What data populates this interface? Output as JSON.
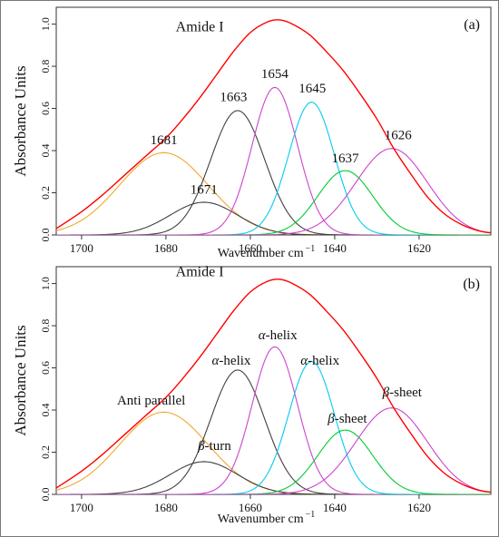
{
  "chart_data": [
    {
      "type": "line",
      "panel_label": "(a)",
      "xlabel": "Wavenumber cm",
      "xlabel_sup": "−1",
      "ylabel": "Absorbance Units",
      "xlim": [
        1706,
        1603
      ],
      "ylim": [
        0,
        1.08
      ],
      "x_ticks": [
        1700,
        1680,
        1660,
        1640,
        1620
      ],
      "y_ticks": [
        0.0,
        0.2,
        0.4,
        0.6,
        0.8,
        1.0
      ],
      "envelope": {
        "name": "Amide I",
        "label": "Amide I",
        "label_x": 1672,
        "label_y": 0.965,
        "color": "#ff0000",
        "x": [
          1706,
          1700,
          1695,
          1690,
          1685,
          1680,
          1676,
          1672,
          1668,
          1664,
          1660,
          1656,
          1653,
          1650,
          1646,
          1642,
          1638,
          1634,
          1630,
          1626,
          1622,
          1618,
          1614,
          1610,
          1606,
          1603
        ],
        "y": [
          0.03,
          0.11,
          0.19,
          0.28,
          0.37,
          0.46,
          0.55,
          0.65,
          0.76,
          0.87,
          0.96,
          1.01,
          1.02,
          1.0,
          0.95,
          0.87,
          0.78,
          0.67,
          0.55,
          0.41,
          0.29,
          0.18,
          0.1,
          0.05,
          0.02,
          0.01
        ]
      },
      "components": [
        {
          "label": "1681",
          "center": 1680.5,
          "amplitude": 0.39,
          "sigma": 10.5,
          "color": "#f0a830",
          "label_x": 1680.5,
          "label_y": 0.43
        },
        {
          "label": "1671",
          "center": 1671,
          "amplitude": 0.155,
          "sigma": 8,
          "color": "#404040",
          "label_x": 1671,
          "label_y": 0.195
        },
        {
          "label": "1663",
          "center": 1663,
          "amplitude": 0.59,
          "sigma": 6.4,
          "color": "#404040",
          "label_x": 1664,
          "label_y": 0.635
        },
        {
          "label": "1654",
          "center": 1654.2,
          "amplitude": 0.7,
          "sigma": 5.4,
          "color": "#cc44cc",
          "label_x": 1654.2,
          "label_y": 0.745
        },
        {
          "label": "1645",
          "center": 1645.5,
          "amplitude": 0.63,
          "sigma": 5.4,
          "color": "#00ccee",
          "label_x": 1645.3,
          "label_y": 0.675
        },
        {
          "label": "1637",
          "center": 1637.5,
          "amplitude": 0.305,
          "sigma": 6.5,
          "color": "#00cc33",
          "label_x": 1637.5,
          "label_y": 0.345
        },
        {
          "label": "1626",
          "center": 1626.5,
          "amplitude": 0.41,
          "sigma": 8.5,
          "color": "#cc44cc",
          "label_x": 1625,
          "label_y": 0.455
        }
      ]
    },
    {
      "type": "line",
      "panel_label": "(b)",
      "xlabel": "Wavenumber cm",
      "xlabel_sup": "−1",
      "ylabel": "Absorbance Units",
      "xlim": [
        1706,
        1603
      ],
      "ylim": [
        0,
        1.08
      ],
      "x_ticks": [
        1700,
        1680,
        1660,
        1640,
        1620
      ],
      "y_ticks": [
        0.0,
        0.2,
        0.4,
        0.6,
        0.8,
        1.0
      ],
      "envelope": {
        "name": "Amide I",
        "label": "Amide I",
        "label_x": 1672,
        "label_y": 1.035,
        "color": "#ff0000",
        "x": [
          1706,
          1700,
          1695,
          1690,
          1685,
          1680,
          1676,
          1672,
          1668,
          1664,
          1660,
          1656,
          1653,
          1650,
          1646,
          1642,
          1638,
          1634,
          1630,
          1626,
          1622,
          1618,
          1614,
          1610,
          1606,
          1603
        ],
        "y": [
          0.03,
          0.11,
          0.19,
          0.28,
          0.37,
          0.46,
          0.55,
          0.65,
          0.76,
          0.87,
          0.96,
          1.01,
          1.02,
          1.0,
          0.95,
          0.87,
          0.78,
          0.67,
          0.55,
          0.41,
          0.29,
          0.18,
          0.1,
          0.05,
          0.02,
          0.01
        ]
      },
      "components": [
        {
          "label": "Anti parallel",
          "center": 1680.5,
          "amplitude": 0.39,
          "sigma": 10.5,
          "color": "#f0a830",
          "label_x": 1683.5,
          "label_y": 0.425,
          "greek": ""
        },
        {
          "label": "-turn",
          "greek": "β",
          "center": 1671,
          "amplitude": 0.155,
          "sigma": 8,
          "color": "#404040",
          "label_x": 1668.5,
          "label_y": 0.21
        },
        {
          "label": "-helix",
          "greek": "α",
          "center": 1663,
          "amplitude": 0.59,
          "sigma": 6.4,
          "color": "#404040",
          "label_x": 1664.5,
          "label_y": 0.615
        },
        {
          "label": "-helix",
          "greek": "α",
          "center": 1654.2,
          "amplitude": 0.7,
          "sigma": 5.4,
          "color": "#cc44cc",
          "label_x": 1653.5,
          "label_y": 0.735
        },
        {
          "label": "-helix",
          "greek": "α",
          "center": 1645.5,
          "amplitude": 0.63,
          "sigma": 5.4,
          "color": "#00ccee",
          "label_x": 1643.5,
          "label_y": 0.615
        },
        {
          "label": "-sheet",
          "greek": "β",
          "center": 1637.5,
          "amplitude": 0.305,
          "sigma": 6.5,
          "color": "#00cc33",
          "label_x": 1637,
          "label_y": 0.34
        },
        {
          "label": "-sheet",
          "greek": "β",
          "center": 1626.5,
          "amplitude": 0.41,
          "sigma": 8.5,
          "color": "#cc44cc",
          "label_x": 1624,
          "label_y": 0.465
        }
      ]
    }
  ]
}
